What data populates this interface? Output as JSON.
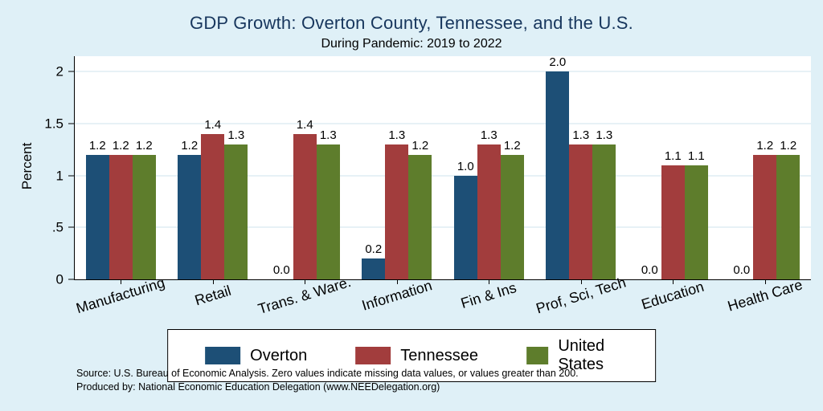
{
  "chart_data": {
    "type": "bar",
    "title": "GDP Growth: Overton County, Tennessee, and the U.S.",
    "subtitle": "During Pandemic: 2019 to 2022",
    "xlabel": "",
    "ylabel": "Percent",
    "ylim": [
      0,
      2.15
    ],
    "yticks": [
      0,
      0.5,
      1,
      1.5,
      2
    ],
    "ytick_labels": [
      "0",
      ".5",
      "1",
      "1.5",
      "2"
    ],
    "grid": true,
    "legend_position": "bottom",
    "categories": [
      "Manufacturing",
      "Retail",
      "Trans. & Ware.",
      "Information",
      "Fin & Ins",
      "Prof, Sci, Tech",
      "Education",
      "Health Care"
    ],
    "series": [
      {
        "name": "Overton",
        "color": "#1d4f76",
        "values": [
          1.2,
          1.2,
          0.0,
          0.2,
          1.0,
          2.0,
          0.0,
          0.0
        ]
      },
      {
        "name": "Tennessee",
        "color": "#a23d3d",
        "values": [
          1.2,
          1.4,
          1.4,
          1.3,
          1.3,
          1.3,
          1.1,
          1.2
        ]
      },
      {
        "name": "United States",
        "color": "#5e7d2c",
        "values": [
          1.2,
          1.3,
          1.3,
          1.2,
          1.2,
          1.3,
          1.1,
          1.2
        ]
      }
    ]
  },
  "notes": {
    "source": "Source: U.S. Bureau of Economic Analysis. Zero values indicate missing data values, or values greater than 200.",
    "produced_by": "Produced by: National Economic Education Delegation (www.NEEDelegation.org)"
  },
  "colors": {
    "background": "#dff0f7",
    "title": "#17365d",
    "gridline": "#cfe3ee"
  }
}
